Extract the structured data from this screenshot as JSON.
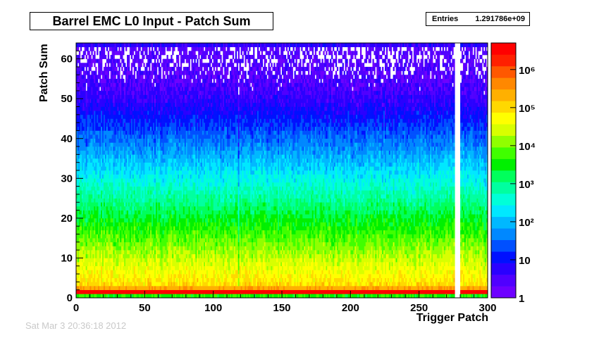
{
  "title": "Barrel EMC L0 Input - Patch Sum",
  "stats": {
    "label": "Entries",
    "value": "1.291786e+09"
  },
  "footer_stamp": "Sat Mar  3 20:36:18 2012",
  "chart_data": {
    "type": "heatmap",
    "title": "Barrel EMC L0 Input - Patch Sum",
    "xlabel": "Trigger Patch",
    "ylabel": "Patch Sum",
    "xlim": [
      0,
      300
    ],
    "ylim": [
      0,
      64
    ],
    "x_ticks": [
      0,
      50,
      100,
      150,
      200,
      250,
      300
    ],
    "y_ticks": [
      0,
      10,
      20,
      30,
      40,
      50,
      60
    ],
    "z_scale": "log",
    "zlim": [
      1,
      5000000
    ],
    "z_ticks": [
      {
        "value": 1,
        "label": "1"
      },
      {
        "value": 10,
        "label": "10"
      },
      {
        "value": 100,
        "label": "10²"
      },
      {
        "value": 1000,
        "label": "10³"
      },
      {
        "value": 10000,
        "label": "10⁴"
      },
      {
        "value": 100000,
        "label": "10⁵"
      },
      {
        "value": 1000000,
        "label": "10⁶"
      }
    ],
    "entries": 1291786000,
    "dead_patches": [
      276,
      277,
      278,
      279
    ],
    "hot_patches": [
      118
    ],
    "colormap": [
      "#6e00ff",
      "#5000ff",
      "#2a00ff",
      "#0010ff",
      "#0050ff",
      "#0088ff",
      "#00b8ff",
      "#00e8ff",
      "#00ffd8",
      "#00ffa0",
      "#00ff5c",
      "#00f000",
      "#40ff00",
      "#90ff00",
      "#d8ff00",
      "#ffff00",
      "#ffd800",
      "#ffb000",
      "#ff8800",
      "#ff5800",
      "#ff2000",
      "#ff0000"
    ]
  }
}
